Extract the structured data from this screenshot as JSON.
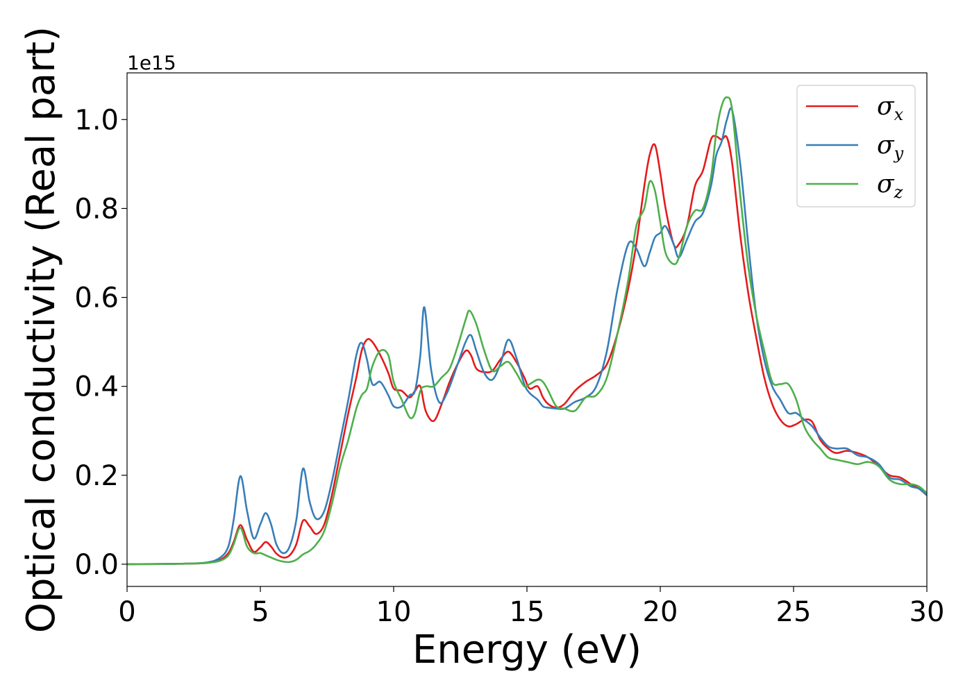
{
  "chart_data": {
    "type": "line",
    "title": "",
    "xlabel": "Energy (eV)",
    "ylabel": "Optical conductivity (Real part)",
    "y_offset_label": "1e15",
    "xlim": [
      0,
      30
    ],
    "ylim": [
      -0.05,
      1.105
    ],
    "xticks": [
      0,
      5,
      10,
      15,
      20,
      25,
      30
    ],
    "xtick_labels": [
      "0",
      "5",
      "10",
      "15",
      "20",
      "25",
      "30"
    ],
    "yticks": [
      0.0,
      0.2,
      0.4,
      0.6,
      0.8,
      1.0
    ],
    "ytick_labels": [
      "0.0",
      "0.2",
      "0.4",
      "0.6",
      "0.8",
      "1.0"
    ],
    "grid": false,
    "legend_position": "top-right",
    "series": [
      {
        "name": "σ_x",
        "legend_base": "σ",
        "legend_sub": "x",
        "color": "#e41a1c",
        "x": [
          0,
          2,
          3,
          3.5,
          3.8,
          4.0,
          4.25,
          4.5,
          4.75,
          5.0,
          5.2,
          5.4,
          5.6,
          5.85,
          6.1,
          6.35,
          6.6,
          6.85,
          7.1,
          7.4,
          7.7,
          8.0,
          8.3,
          8.6,
          8.8,
          9.0,
          9.2,
          9.5,
          9.8,
          10.0,
          10.3,
          10.6,
          10.8,
          11.0,
          11.2,
          11.5,
          11.8,
          12.1,
          12.4,
          12.7,
          12.9,
          13.1,
          13.4,
          13.7,
          14.0,
          14.3,
          14.6,
          14.9,
          15.1,
          15.4,
          15.6,
          15.8,
          16.1,
          16.4,
          16.8,
          17.2,
          17.6,
          18.0,
          18.4,
          18.8,
          19.1,
          19.4,
          19.6,
          19.8,
          20.0,
          20.2,
          20.5,
          20.7,
          21.0,
          21.3,
          21.6,
          21.9,
          22.1,
          22.3,
          22.5,
          22.7,
          23.0,
          23.3,
          23.6,
          23.9,
          24.2,
          24.5,
          24.8,
          25.1,
          25.4,
          25.7,
          26.0,
          26.3,
          26.6,
          27.0,
          27.4,
          27.8,
          28.2,
          28.6,
          29.0,
          29.4,
          29.7,
          30.0
        ],
        "y": [
          0.0,
          0.001,
          0.003,
          0.01,
          0.025,
          0.05,
          0.088,
          0.055,
          0.028,
          0.038,
          0.05,
          0.04,
          0.024,
          0.015,
          0.02,
          0.045,
          0.098,
          0.085,
          0.068,
          0.09,
          0.16,
          0.25,
          0.34,
          0.42,
          0.48,
          0.505,
          0.5,
          0.47,
          0.43,
          0.395,
          0.39,
          0.375,
          0.39,
          0.4,
          0.345,
          0.322,
          0.36,
          0.41,
          0.45,
          0.48,
          0.47,
          0.44,
          0.432,
          0.435,
          0.46,
          0.478,
          0.455,
          0.42,
          0.395,
          0.4,
          0.375,
          0.36,
          0.352,
          0.36,
          0.39,
          0.41,
          0.425,
          0.45,
          0.52,
          0.62,
          0.72,
          0.85,
          0.92,
          0.943,
          0.88,
          0.8,
          0.72,
          0.72,
          0.76,
          0.85,
          0.885,
          0.955,
          0.962,
          0.955,
          0.96,
          0.9,
          0.74,
          0.61,
          0.51,
          0.42,
          0.36,
          0.325,
          0.31,
          0.315,
          0.325,
          0.32,
          0.28,
          0.26,
          0.25,
          0.255,
          0.25,
          0.24,
          0.22,
          0.2,
          0.195,
          0.18,
          0.17,
          0.155
        ]
      },
      {
        "name": "σ_y",
        "legend_base": "σ",
        "legend_sub": "y",
        "color": "#377eb8",
        "x": [
          0,
          2,
          3,
          3.5,
          3.8,
          4.0,
          4.25,
          4.5,
          4.75,
          5.0,
          5.2,
          5.4,
          5.6,
          5.85,
          6.1,
          6.35,
          6.6,
          6.85,
          7.1,
          7.4,
          7.7,
          8.0,
          8.3,
          8.6,
          8.8,
          9.0,
          9.2,
          9.5,
          9.8,
          10.0,
          10.3,
          10.6,
          10.8,
          11.0,
          11.15,
          11.4,
          11.7,
          12.0,
          12.4,
          12.7,
          12.9,
          13.1,
          13.4,
          13.7,
          14.0,
          14.3,
          14.6,
          14.9,
          15.1,
          15.4,
          15.6,
          15.8,
          16.1,
          16.4,
          16.8,
          17.2,
          17.6,
          18.0,
          18.4,
          18.8,
          19.1,
          19.4,
          19.6,
          19.8,
          20.0,
          20.2,
          20.5,
          20.7,
          21.0,
          21.3,
          21.6,
          21.9,
          22.1,
          22.3,
          22.5,
          22.7,
          23.0,
          23.3,
          23.6,
          23.9,
          24.2,
          24.5,
          24.8,
          25.1,
          25.4,
          25.7,
          26.0,
          26.3,
          26.6,
          27.0,
          27.4,
          27.8,
          28.2,
          28.6,
          29.0,
          29.4,
          29.7,
          30.0
        ],
        "y": [
          0.0,
          0.001,
          0.004,
          0.015,
          0.04,
          0.1,
          0.198,
          0.12,
          0.058,
          0.09,
          0.115,
          0.09,
          0.045,
          0.025,
          0.04,
          0.1,
          0.215,
          0.14,
          0.102,
          0.12,
          0.19,
          0.28,
          0.37,
          0.47,
          0.498,
          0.46,
          0.405,
          0.41,
          0.38,
          0.355,
          0.355,
          0.38,
          0.39,
          0.47,
          0.578,
          0.44,
          0.365,
          0.385,
          0.45,
          0.5,
          0.515,
          0.48,
          0.43,
          0.415,
          0.45,
          0.505,
          0.465,
          0.405,
          0.385,
          0.37,
          0.355,
          0.352,
          0.35,
          0.35,
          0.365,
          0.375,
          0.4,
          0.48,
          0.62,
          0.72,
          0.71,
          0.67,
          0.7,
          0.735,
          0.745,
          0.76,
          0.72,
          0.69,
          0.73,
          0.77,
          0.79,
          0.85,
          0.92,
          0.95,
          1.0,
          1.02,
          0.9,
          0.72,
          0.56,
          0.46,
          0.4,
          0.37,
          0.34,
          0.34,
          0.325,
          0.31,
          0.285,
          0.265,
          0.26,
          0.26,
          0.245,
          0.24,
          0.225,
          0.195,
          0.19,
          0.175,
          0.17,
          0.155
        ]
      },
      {
        "name": "σ_z",
        "legend_base": "σ",
        "legend_sub": "z",
        "color": "#4daf4a",
        "x": [
          0,
          2,
          3,
          3.5,
          3.8,
          4.0,
          4.25,
          4.5,
          4.75,
          5.0,
          5.2,
          5.4,
          5.6,
          5.85,
          6.1,
          6.35,
          6.6,
          6.85,
          7.1,
          7.4,
          7.7,
          8.0,
          8.3,
          8.6,
          8.8,
          9.0,
          9.2,
          9.5,
          9.8,
          10.0,
          10.3,
          10.6,
          10.8,
          11.0,
          11.2,
          11.5,
          11.8,
          12.1,
          12.4,
          12.7,
          12.85,
          13.1,
          13.4,
          13.7,
          14.0,
          14.3,
          14.6,
          14.9,
          15.1,
          15.4,
          15.6,
          15.8,
          16.1,
          16.4,
          16.8,
          17.2,
          17.6,
          18.0,
          18.4,
          18.8,
          19.1,
          19.4,
          19.6,
          19.8,
          20.0,
          20.2,
          20.5,
          20.7,
          21.0,
          21.3,
          21.6,
          21.9,
          22.1,
          22.3,
          22.5,
          22.7,
          23.0,
          23.3,
          23.6,
          23.9,
          24.2,
          24.5,
          24.8,
          25.1,
          25.4,
          25.7,
          26.0,
          26.3,
          26.6,
          27.0,
          27.4,
          27.8,
          28.2,
          28.6,
          29.0,
          29.4,
          29.7,
          30.0
        ],
        "y": [
          0.0,
          0.001,
          0.003,
          0.008,
          0.02,
          0.045,
          0.082,
          0.04,
          0.025,
          0.025,
          0.02,
          0.015,
          0.01,
          0.006,
          0.005,
          0.01,
          0.022,
          0.03,
          0.045,
          0.075,
          0.14,
          0.22,
          0.28,
          0.35,
          0.38,
          0.395,
          0.445,
          0.48,
          0.47,
          0.41,
          0.37,
          0.33,
          0.34,
          0.39,
          0.4,
          0.4,
          0.42,
          0.44,
          0.49,
          0.55,
          0.57,
          0.54,
          0.48,
          0.435,
          0.445,
          0.455,
          0.43,
          0.4,
          0.405,
          0.415,
          0.41,
          0.39,
          0.355,
          0.35,
          0.345,
          0.375,
          0.38,
          0.42,
          0.52,
          0.64,
          0.76,
          0.8,
          0.86,
          0.84,
          0.77,
          0.7,
          0.675,
          0.69,
          0.76,
          0.795,
          0.8,
          0.87,
          0.97,
          1.03,
          1.05,
          1.02,
          0.83,
          0.67,
          0.56,
          0.48,
          0.41,
          0.405,
          0.405,
          0.37,
          0.31,
          0.28,
          0.26,
          0.24,
          0.235,
          0.23,
          0.225,
          0.23,
          0.22,
          0.19,
          0.18,
          0.18,
          0.175,
          0.16
        ]
      }
    ]
  }
}
